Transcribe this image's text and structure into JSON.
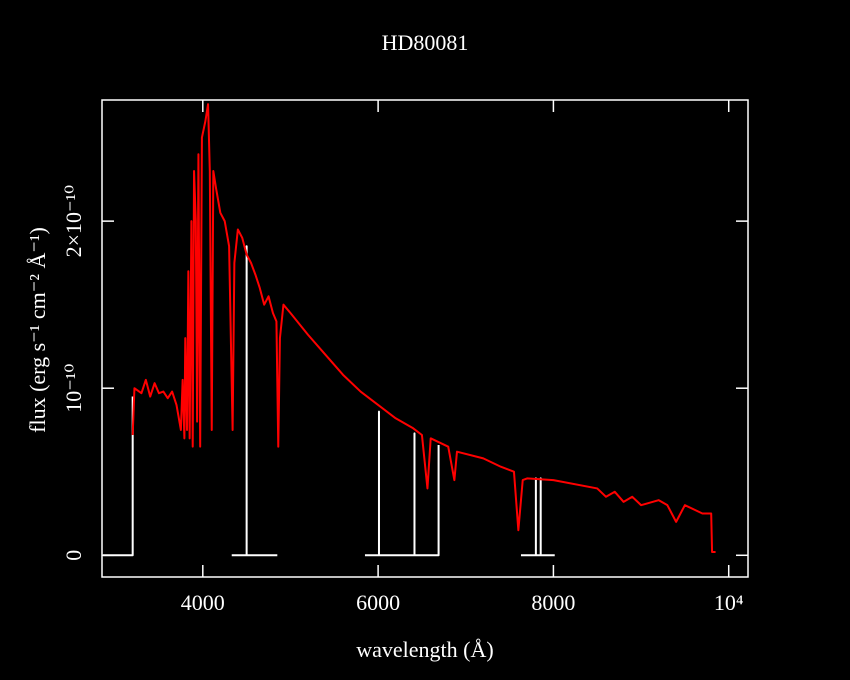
{
  "chart_data": {
    "type": "line",
    "title": "HD80081",
    "xlabel": "wavelength (Å)",
    "ylabel": "flux (erg s⁻¹ cm⁻² Å⁻¹)",
    "xlim": [
      2850,
      10220
    ],
    "ylim": [
      -1.3e-11,
      2.725e-10
    ],
    "xticks": [
      4000,
      6000,
      8000,
      {
        "value": 10000,
        "label": "10⁴"
      }
    ],
    "yticks": [
      0,
      {
        "value": 1e-10,
        "label": "10⁻¹⁰"
      },
      {
        "value": 2e-10,
        "label": "2×10⁻¹⁰"
      }
    ],
    "series": [
      {
        "name": "white",
        "color": "#ffffff",
        "x": [
          2860,
          3200,
          3200,
          null,
          4330,
          4500,
          4500,
          4500,
          4850,
          null,
          5850,
          6010,
          6010,
          6010,
          6415,
          6415,
          6415,
          6690,
          6690,
          null,
          7630,
          7800,
          7800,
          7800,
          7855,
          7855,
          7855,
          8015
        ],
        "values": [
          0,
          0,
          9.5e-11,
          null,
          0,
          0,
          1.85e-10,
          0,
          0,
          null,
          0,
          0,
          8.6e-11,
          0,
          0,
          7.3e-11,
          0,
          0,
          6.6e-11,
          null,
          0,
          0,
          4.6e-11,
          0,
          0,
          4.6e-11,
          0,
          0
        ]
      },
      {
        "name": "red",
        "color": "#ff0000",
        "x": [
          3200,
          3220,
          3300,
          3350,
          3400,
          3450,
          3500,
          3550,
          3600,
          3650,
          3700,
          3750,
          3770,
          3790,
          3800,
          3820,
          3835,
          3850,
          3870,
          3885,
          3900,
          3920,
          3935,
          3950,
          3970,
          3990,
          4030,
          4060,
          4080,
          4102,
          4120,
          4150,
          4200,
          4250,
          4300,
          4340,
          4360,
          4400,
          4450,
          4500,
          4550,
          4600,
          4650,
          4700,
          4750,
          4800,
          4840,
          4861,
          4880,
          4920,
          5000,
          5200,
          5400,
          5600,
          5800,
          6000,
          6200,
          6400,
          6500,
          6563,
          6600,
          6800,
          6870,
          6900,
          7200,
          7400,
          7550,
          7600,
          7650,
          7700,
          8000,
          8500,
          8600,
          8700,
          8800,
          8900,
          9000,
          9200,
          9300,
          9400,
          9500,
          9700,
          9800,
          9810,
          9850
        ],
        "values": [
          7.2e-11,
          1e-10,
          9.7e-11,
          1.05e-10,
          9.5e-11,
          1.03e-10,
          9.7e-11,
          9.8e-11,
          9.4e-11,
          9.8e-11,
          9e-11,
          7.5e-11,
          1.05e-10,
          7e-11,
          1.3e-10,
          7.5e-11,
          1.7e-10,
          7e-11,
          2e-10,
          6.5e-11,
          2.3e-10,
          2e-10,
          8e-11,
          2.4e-10,
          6.5e-11,
          2.5e-10,
          2.6e-10,
          2.7e-10,
          2.3e-10,
          7.5e-11,
          2.3e-10,
          2.2e-10,
          2.05e-10,
          2e-10,
          1.85e-10,
          7.5e-11,
          1.75e-10,
          1.95e-10,
          1.9e-10,
          1.8e-10,
          1.75e-10,
          1.68e-10,
          1.6e-10,
          1.5e-10,
          1.55e-10,
          1.45e-10,
          1.4e-10,
          6.5e-11,
          1.3e-10,
          1.5e-10,
          1.45e-10,
          1.32e-10,
          1.2e-10,
          1.08e-10,
          9.8e-11,
          9e-11,
          8.2e-11,
          7.6e-11,
          7.2e-11,
          4e-11,
          7e-11,
          6.5e-11,
          4.5e-11,
          6.2e-11,
          5.8e-11,
          5.3e-11,
          5e-11,
          1.5e-11,
          4.5e-11,
          4.6e-11,
          4.5e-11,
          4e-11,
          3.5e-11,
          3.8e-11,
          3.2e-11,
          3.5e-11,
          3e-11,
          3.3e-11,
          3e-11,
          2e-11,
          3e-11,
          2.5e-11,
          2.5e-11,
          2e-12,
          2e-12
        ]
      }
    ]
  }
}
